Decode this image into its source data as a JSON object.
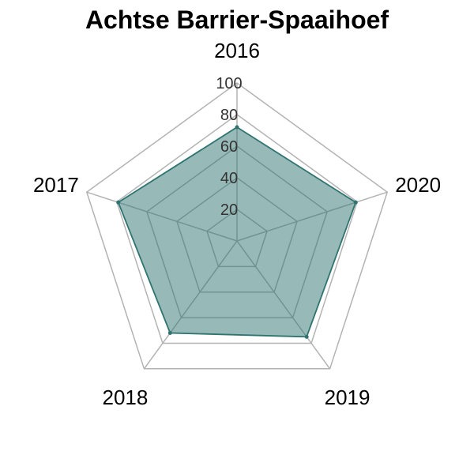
{
  "chart_data": {
    "type": "radar",
    "title": "Achtse Barrier-Spaaihoef",
    "categories": [
      "2016",
      "2020",
      "2019",
      "2018",
      "2017"
    ],
    "series": [
      {
        "values": [
          72,
          79,
          75,
          72,
          79
        ]
      }
    ],
    "radial_ticks": [
      20,
      40,
      60,
      80,
      100
    ],
    "rlim": [
      0,
      100
    ],
    "grid": true,
    "legend": "none",
    "colors": {
      "fill": "#8fb3b2",
      "stroke": "#2f7470",
      "grid": "#b3b3b3",
      "inner_grid": "#7f9c9b",
      "background": "#ffffff"
    }
  }
}
